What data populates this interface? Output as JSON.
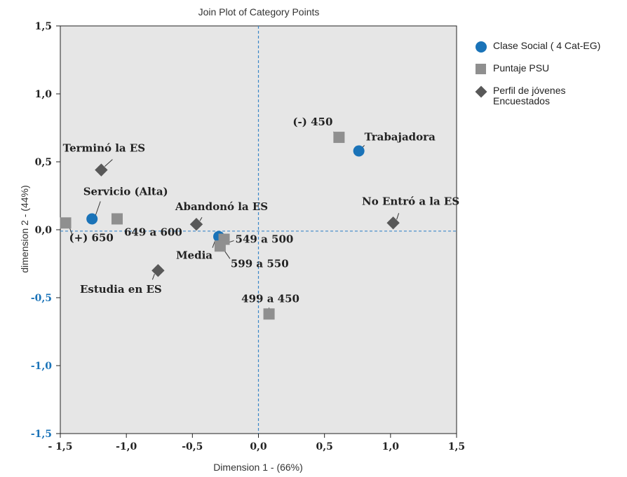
{
  "chart_data": {
    "type": "scatter",
    "title": "Join Plot of Category Points",
    "xlabel": "Dimension 1 - (66%)",
    "ylabel": "dimension 2 - (44%)",
    "xlim": [
      -1.5,
      1.5
    ],
    "ylim": [
      -1.5,
      1.5
    ],
    "x_ticks": [
      -1.5,
      -1.0,
      -0.5,
      0.0,
      0.5,
      1.0,
      1.5
    ],
    "x_tick_labels": [
      "- 1,5",
      "-1,0",
      "-0,5",
      "0,0",
      "0,5",
      "1,0",
      "1,5"
    ],
    "y_ticks": [
      1.5,
      1.0,
      0.5,
      0.0,
      -0.5,
      -1.0,
      -1.5
    ],
    "y_tick_labels": [
      "1,5",
      "1,0",
      "0,5",
      "0,0",
      "-0,5",
      "-1,0",
      "-1,5"
    ],
    "reference_lines": {
      "x": 0.0,
      "y": -0.01
    },
    "grid": false,
    "legend_position": "right",
    "background": "#e6e6e6",
    "series": [
      {
        "name": "Clase Social ( 4 Cat-EG)",
        "marker": "circle",
        "color": "#1a73b8",
        "points": [
          {
            "label": "Trabajadora",
            "x": 0.76,
            "y": 0.58
          },
          {
            "label": "Servicio (Alta)",
            "x": -1.26,
            "y": 0.08
          },
          {
            "label": "Media",
            "x": -0.3,
            "y": -0.05
          }
        ]
      },
      {
        "name": "Puntaje PSU",
        "marker": "square",
        "color": "#8f8f8f",
        "points": [
          {
            "label": "(-) 450",
            "x": 0.61,
            "y": 0.68
          },
          {
            "label": "(+) 650",
            "x": -1.46,
            "y": 0.05
          },
          {
            "label": "649 a 600",
            "x": -1.07,
            "y": 0.08
          },
          {
            "label": "549 a 500",
            "x": -0.26,
            "y": -0.07
          },
          {
            "label": "599 a 550",
            "x": -0.29,
            "y": -0.12
          },
          {
            "label": "499 a 450",
            "x": 0.08,
            "y": -0.62
          }
        ]
      },
      {
        "name": "Perfil de jóvenes\nEncuestados",
        "marker": "diamond",
        "color": "#585858",
        "points": [
          {
            "label": "Terminó la ES",
            "x": -1.19,
            "y": 0.44
          },
          {
            "label": "Abandonó la ES",
            "x": -0.47,
            "y": 0.04
          },
          {
            "label": "No Entró a la ES",
            "x": 1.02,
            "y": 0.05
          },
          {
            "label": "Estudia en ES",
            "x": -0.76,
            "y": -0.3
          }
        ]
      }
    ]
  }
}
